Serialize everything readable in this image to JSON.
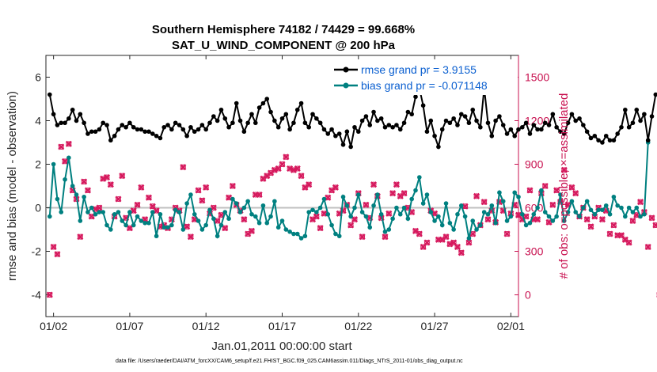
{
  "chart_data": {
    "type": "line",
    "title": "Southern Hemisphere 74182 / 74429 = 99.668%",
    "subtitle": "SAT_U_WIND_COMPONENT @ 200 hPa",
    "xlabel": "Jan.01,2011 00:00:00 start",
    "ylabel_left": "rmse and bias (model - observation)",
    "ylabel_right": "# of obs: o=possible; ×=assimilated",
    "footnote": "data file: /Users/raeder/DAI/ATM_forcXX/CAM6_setup/f.e21.FHIST_BGC.f09_025.CAM6assim.011/Diags_NTrS_2011-01/obs_diag_output.nc",
    "x_tick_labels": [
      "01/02",
      "01/07",
      "01/12",
      "01/17",
      "01/22",
      "01/27",
      "02/01"
    ],
    "x_tick_days": [
      1,
      6,
      11,
      16,
      21,
      26,
      31
    ],
    "xlim_days": [
      0.5,
      31.5
    ],
    "ylim_left": [
      -5,
      7
    ],
    "yticks_left": [
      -4,
      -2,
      0,
      2,
      4,
      6
    ],
    "ylim_right": [
      -150,
      1650
    ],
    "yticks_right": [
      0,
      300,
      600,
      900,
      1200,
      1500
    ],
    "zero_line": 0,
    "grid": false,
    "legend_position": "top-right",
    "colors": {
      "rmse": "#000000",
      "bias": "#008080",
      "obs": "#d61a5e",
      "zero": "#bfbfbf",
      "legend_text": "#0a5fd0",
      "right_axis": "#c8104f"
    },
    "series": [
      {
        "name": "rmse grand pr = 3.9155",
        "axis": "left",
        "marker": "filled-circle",
        "x_start_day": 0.75,
        "x_step_days": 0.25,
        "values": [
          5.2,
          4.3,
          3.8,
          3.9,
          3.9,
          4.1,
          4.5,
          4.0,
          4.3,
          3.9,
          3.4,
          3.5,
          3.5,
          3.6,
          3.9,
          3.8,
          3.1,
          3.3,
          3.6,
          3.8,
          3.7,
          3.9,
          3.7,
          3.6,
          3.6,
          3.5,
          3.5,
          3.4,
          3.3,
          3.2,
          3.7,
          3.8,
          3.6,
          3.9,
          3.8,
          3.6,
          3.3,
          3.7,
          3.5,
          3.6,
          3.8,
          3.6,
          3.9,
          4.2,
          4.0,
          4.5,
          4.1,
          3.7,
          3.9,
          4.8,
          4.0,
          3.5,
          3.9,
          4.3,
          3.9,
          4.6,
          4.8,
          5.0,
          4.4,
          4.0,
          3.7,
          4.1,
          4.3,
          3.6,
          3.9,
          4.5,
          4.8,
          3.9,
          3.7,
          4.3,
          4.1,
          3.9,
          3.6,
          3.4,
          3.6,
          3.3,
          3.4,
          2.9,
          3.5,
          2.8,
          3.7,
          3.5,
          4.0,
          4.2,
          3.8,
          4.4,
          4.0,
          4.1,
          3.7,
          3.8,
          3.7,
          3.8,
          3.6,
          3.9,
          4.4,
          4.3,
          5.1,
          5.5,
          4.7,
          3.5,
          4.0,
          3.3,
          2.8,
          3.6,
          4.0,
          3.9,
          4.1,
          3.8,
          4.3,
          4.2,
          3.9,
          4.5,
          4.0,
          3.7,
          5.5,
          3.9,
          3.3,
          4.0,
          4.2,
          3.8,
          3.4,
          3.6,
          3.3,
          3.6,
          3.7,
          3.9,
          3.4,
          3.8,
          3.6,
          3.6,
          3.9,
          3.8,
          4.3,
          3.7,
          3.5,
          3.4,
          3.9,
          4.3,
          4.0,
          4.1,
          3.8,
          3.5,
          3.2,
          3.3,
          3.1,
          3.0,
          3.3,
          3.1,
          3.1,
          3.4,
          3.7,
          4.5,
          3.7,
          3.9,
          4.5,
          4.0,
          4.3,
          3.1,
          4.2,
          5.2
        ]
      },
      {
        "name": "bias grand pr = -0.071148",
        "axis": "left",
        "marker": "filled-circle",
        "x_start_day": 0.75,
        "x_step_days": 0.25,
        "values": [
          -0.4,
          2.0,
          0.4,
          -0.2,
          1.3,
          2.3,
          1.0,
          0.6,
          -0.6,
          0.5,
          -0.2,
          0.0,
          -0.3,
          -0.2,
          -0.2,
          -0.8,
          -1.0,
          -0.3,
          -0.2,
          -0.6,
          -0.8,
          -0.2,
          -0.8,
          -0.4,
          -0.6,
          -0.7,
          -0.7,
          -0.2,
          -1.3,
          -0.3,
          -0.9,
          -0.9,
          -0.8,
          -0.1,
          -0.2,
          -1.0,
          0.2,
          0.6,
          -0.3,
          -0.6,
          -1.0,
          -0.8,
          -0.1,
          -0.5,
          -1.3,
          -0.8,
          -0.2,
          -0.5,
          0.4,
          0.2,
          -0.2,
          0.0,
          0.3,
          -0.3,
          -0.4,
          -0.7,
          0.1,
          -0.7,
          -0.4,
          0.3,
          -0.9,
          -0.6,
          -1.0,
          -1.1,
          -1.2,
          -1.2,
          -1.4,
          -1.3,
          -0.2,
          -0.1,
          -0.2,
          0.0,
          0.4,
          -0.3,
          -0.8,
          -1.2,
          -1.3,
          0.5,
          0.1,
          -0.4,
          0.0,
          0.6,
          -0.2,
          -0.4,
          -0.9,
          0.1,
          0.6,
          -0.3,
          -1.1,
          -1.0,
          -0.5,
          0.0,
          -0.3,
          0.0,
          -0.5,
          0.4,
          0.8,
          1.4,
          0.2,
          0.6,
          -0.2,
          -0.6,
          -0.4,
          -0.8,
          0.2,
          -0.7,
          -1.0,
          -0.3,
          0.1,
          -0.4,
          -1.4,
          -0.6,
          -1.0,
          -0.8,
          -0.2,
          -0.3,
          0.1,
          -0.7,
          0.7,
          0.3,
          -0.6,
          -0.4,
          0.7,
          0.5,
          -0.3,
          -0.8,
          -0.7,
          -0.3,
          0.0,
          0.8,
          -0.2,
          -0.4,
          -0.6,
          -0.4,
          0.6,
          -0.6,
          -0.2,
          0.3,
          -0.2,
          -0.4,
          0.0,
          0.3,
          -0.1,
          -0.3,
          -0.1,
          -0.1,
          0.1,
          -0.3,
          0.5,
          0.1,
          0.0,
          -0.4,
          0.0,
          -0.2,
          0.0,
          -0.4,
          -0.3,
          3.0
        ]
      },
      {
        "name": "obs assimilated",
        "axis": "right",
        "marker": "x",
        "x_start_day": 0.75,
        "x_step_days": 0.25,
        "values": [
          0,
          330,
          280,
          1020,
          920,
          1040,
          720,
          660,
          400,
          780,
          720,
          540,
          590,
          600,
          800,
          810,
          760,
          540,
          660,
          820,
          530,
          460,
          580,
          620,
          740,
          520,
          670,
          610,
          580,
          470,
          480,
          460,
          520,
          600,
          580,
          880,
          470,
          400,
          520,
          720,
          650,
          740,
          560,
          600,
          510,
          550,
          460,
          670,
          750,
          620,
          580,
          520,
          420,
          440,
          690,
          690,
          800,
          820,
          840,
          860,
          870,
          900,
          950,
          870,
          860,
          870,
          820,
          740,
          760,
          520,
          540,
          460,
          560,
          670,
          720,
          740,
          560,
          580,
          620,
          480,
          520,
          700,
          400,
          620,
          530,
          760,
          680,
          530,
          400,
          560,
          700,
          760,
          680,
          700,
          600,
          570,
          440,
          420,
          330,
          360,
          580,
          560,
          380,
          380,
          400,
          350,
          360,
          330,
          290,
          610,
          360,
          420,
          680,
          480,
          640,
          520,
          580,
          500,
          640,
          580,
          420,
          560,
          620,
          550,
          520,
          540,
          720,
          520,
          520,
          700,
          750,
          500,
          620,
          720,
          640,
          860,
          620,
          740,
          700,
          540,
          600,
          520,
          470,
          540,
          600,
          520,
          580,
          420,
          480,
          410,
          410,
          380,
          360,
          510,
          550,
          640,
          570,
          330,
          530,
          480,
          0
        ]
      },
      {
        "name": "obs possible",
        "axis": "right",
        "marker": "circle",
        "x_start_day": 0.75,
        "x_step_days": 0.25,
        "values": [
          0,
          330,
          280,
          1020,
          920,
          1040,
          720,
          660,
          400,
          780,
          720,
          540,
          590,
          600,
          800,
          810,
          760,
          540,
          660,
          820,
          530,
          460,
          580,
          620,
          740,
          520,
          670,
          610,
          580,
          470,
          480,
          460,
          520,
          600,
          580,
          880,
          470,
          400,
          520,
          720,
          650,
          740,
          560,
          600,
          510,
          550,
          460,
          670,
          750,
          620,
          580,
          520,
          420,
          440,
          690,
          690,
          800,
          820,
          840,
          860,
          870,
          900,
          950,
          870,
          860,
          870,
          820,
          740,
          760,
          520,
          540,
          460,
          560,
          670,
          720,
          740,
          560,
          580,
          620,
          480,
          520,
          700,
          400,
          620,
          530,
          760,
          680,
          530,
          400,
          560,
          700,
          760,
          680,
          700,
          600,
          570,
          440,
          420,
          330,
          360,
          580,
          560,
          380,
          380,
          400,
          350,
          360,
          330,
          290,
          610,
          360,
          420,
          680,
          480,
          640,
          520,
          580,
          500,
          640,
          580,
          420,
          560,
          620,
          550,
          520,
          540,
          720,
          520,
          520,
          700,
          750,
          500,
          620,
          720,
          640,
          860,
          620,
          740,
          700,
          540,
          600,
          520,
          470,
          540,
          600,
          520,
          580,
          420,
          480,
          410,
          410,
          380,
          360,
          510,
          550,
          640,
          570,
          330,
          530,
          480,
          0
        ]
      }
    ]
  }
}
